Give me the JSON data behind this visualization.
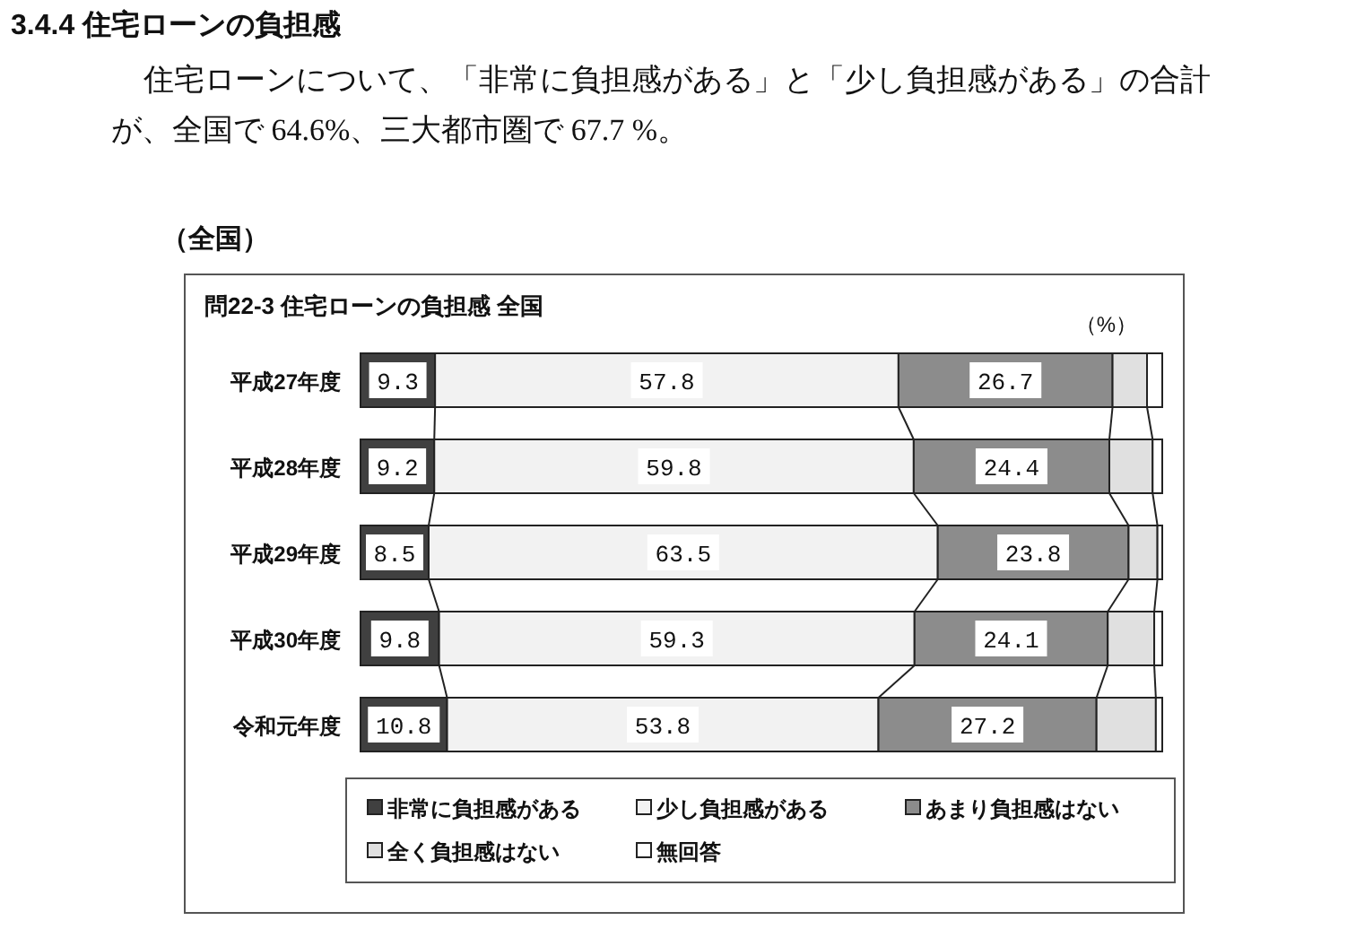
{
  "chart_data": {
    "type": "bar",
    "orientation": "horizontal",
    "stacked": true,
    "title": "3.4.4 住宅ローンの負担感",
    "subtitle": "住宅ローンについて、「非常に負担感がある」と「少し負担感がある」の合計が、全国で 64.6%、三大都市圏で 67.7 %。",
    "annotations": [
      "（全国）",
      "問22-3 住宅ローンの負担感 全国",
      "（%）"
    ],
    "categories": [
      "平成27年度",
      "平成28年度",
      "平成29年度",
      "平成30年度",
      "令和元年度"
    ],
    "xlim": [
      0,
      100
    ],
    "legend": "bottom",
    "series": [
      {
        "name": "非常に負担感がある",
        "color": "#404040",
        "values": [
          9.3,
          9.2,
          8.5,
          9.8,
          10.8
        ],
        "value_labels": [
          "9.3",
          "9.2",
          "8.5",
          "9.8",
          "10.8"
        ]
      },
      {
        "name": "少し負担感がある",
        "color": "#f2f2f2",
        "values": [
          57.8,
          59.8,
          63.5,
          59.3,
          53.8
        ],
        "value_labels": [
          "57.8",
          "59.8",
          "63.5",
          "59.3",
          "53.8"
        ]
      },
      {
        "name": "あまり負担感はない",
        "color": "#8c8c8c",
        "values": [
          26.7,
          24.4,
          23.8,
          24.1,
          27.2
        ],
        "value_labels": [
          "26.7",
          "24.4",
          "23.8",
          "24.1",
          "27.2"
        ]
      },
      {
        "name": "全く負担感はない",
        "color": "#e0e0e0",
        "values": [
          4.3,
          5.4,
          3.6,
          5.8,
          7.4
        ]
      },
      {
        "name": "無回答",
        "color": "#ffffff",
        "values": [
          1.9,
          1.2,
          0.6,
          1.0,
          0.8
        ]
      }
    ]
  }
}
